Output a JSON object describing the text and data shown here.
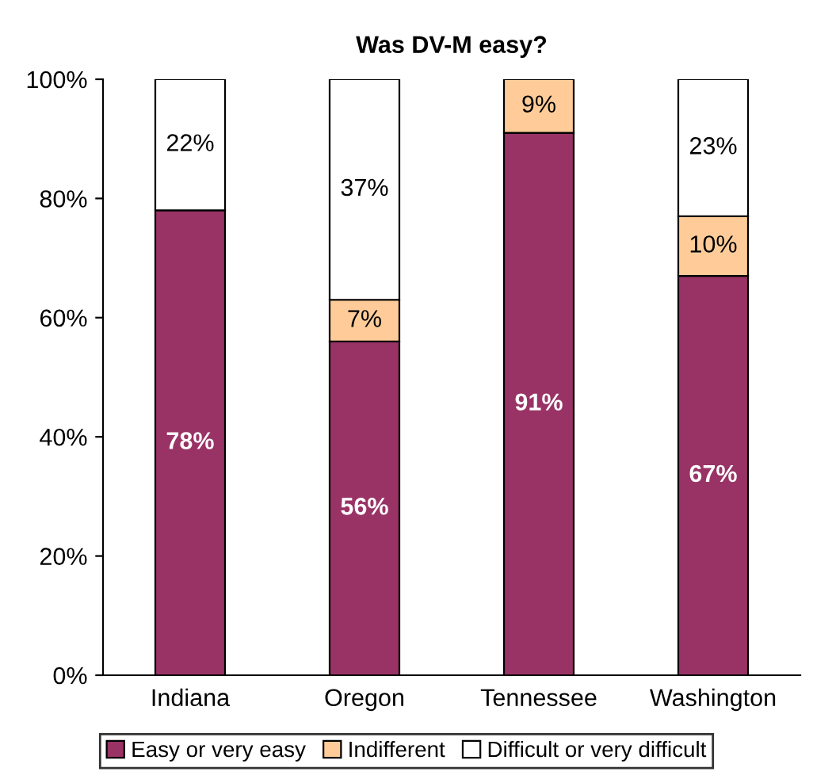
{
  "chart_data": {
    "type": "bar",
    "title": "Was DV-M easy?",
    "stacked": true,
    "categories": [
      "Indiana",
      "Oregon",
      "Tennessee",
      "Washington"
    ],
    "series": [
      {
        "name": "Easy or very easy",
        "color": "#993366",
        "values": [
          78,
          56,
          91,
          67
        ],
        "value_labels": [
          "78%",
          "56%",
          "91%",
          "67%"
        ]
      },
      {
        "name": "Indifferent",
        "color": "#ffcc99",
        "values": [
          null,
          7,
          9,
          10
        ],
        "value_labels": [
          null,
          "7%",
          "9%",
          "10%"
        ]
      },
      {
        "name": "Difficult or very difficult",
        "color": "#ffffff",
        "values": [
          22,
          37,
          null,
          23
        ],
        "value_labels": [
          "22%",
          "37%",
          null,
          "23%"
        ]
      }
    ],
    "ylim": [
      0,
      100
    ],
    "yticks": [
      {
        "value": 0,
        "label": "0%"
      },
      {
        "value": 20,
        "label": "20%"
      },
      {
        "value": 40,
        "label": "40%"
      },
      {
        "value": 60,
        "label": "60%"
      },
      {
        "value": 80,
        "label": "80%"
      },
      {
        "value": 100,
        "label": "100%"
      }
    ],
    "grid": false,
    "legend": "bottom"
  }
}
